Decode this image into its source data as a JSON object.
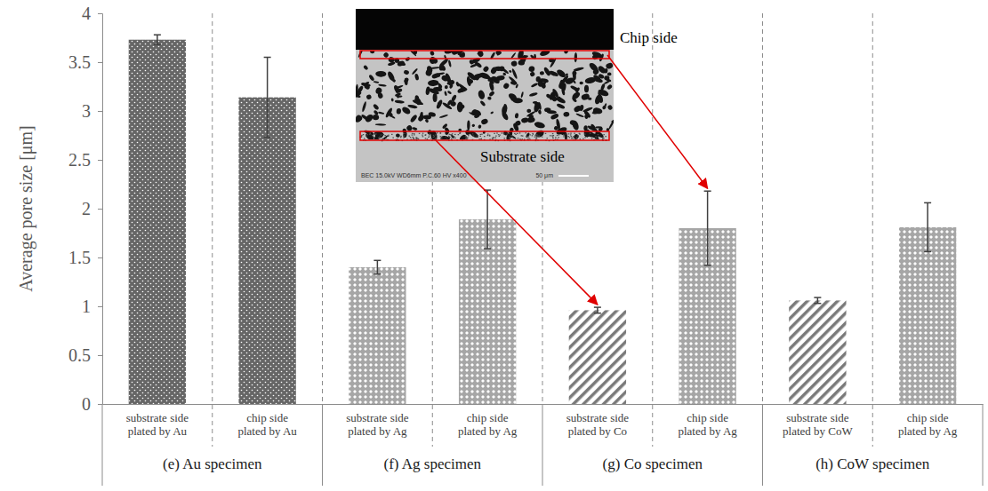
{
  "chart_data": {
    "type": "bar",
    "y_label": "Average pore size [μm]",
    "categories": [
      "substrate side plated by Au",
      "chip side plated by Au",
      "substrate side plated by Ag",
      "chip side plated by Ag",
      "substrate side plated by Co",
      "chip side plated by Ag",
      "substrate side plated by CoW",
      "chip side plated by Ag"
    ],
    "groups": [
      "(e) Au specimen",
      "(f) Ag specimen",
      "(g) Co specimen",
      "(h) CoW specimen"
    ],
    "values": [
      3.73,
      3.14,
      1.4,
      1.89,
      0.96,
      1.8,
      1.06,
      1.81
    ],
    "errors": [
      0.05,
      0.41,
      0.07,
      0.3,
      0.03,
      0.38,
      0.03,
      0.25
    ],
    "colors": [
      "#666666",
      "#666666",
      "#a6a6a6",
      "#a6a6a6",
      "#7a7a7a",
      "#a6a6a6",
      "#7a7a7a",
      "#a6a6a6"
    ],
    "ylim": [
      0,
      4
    ],
    "yticks": [
      0,
      0.5,
      1,
      1.5,
      2,
      2.5,
      3,
      3.5,
      4
    ],
    "grid": false,
    "annotations": [
      "Chip side",
      "Substrate side"
    ],
    "inset_text": [
      "BEC 15.0kV WD6mm P.C.60 HV x400",
      "50 μm"
    ]
  }
}
